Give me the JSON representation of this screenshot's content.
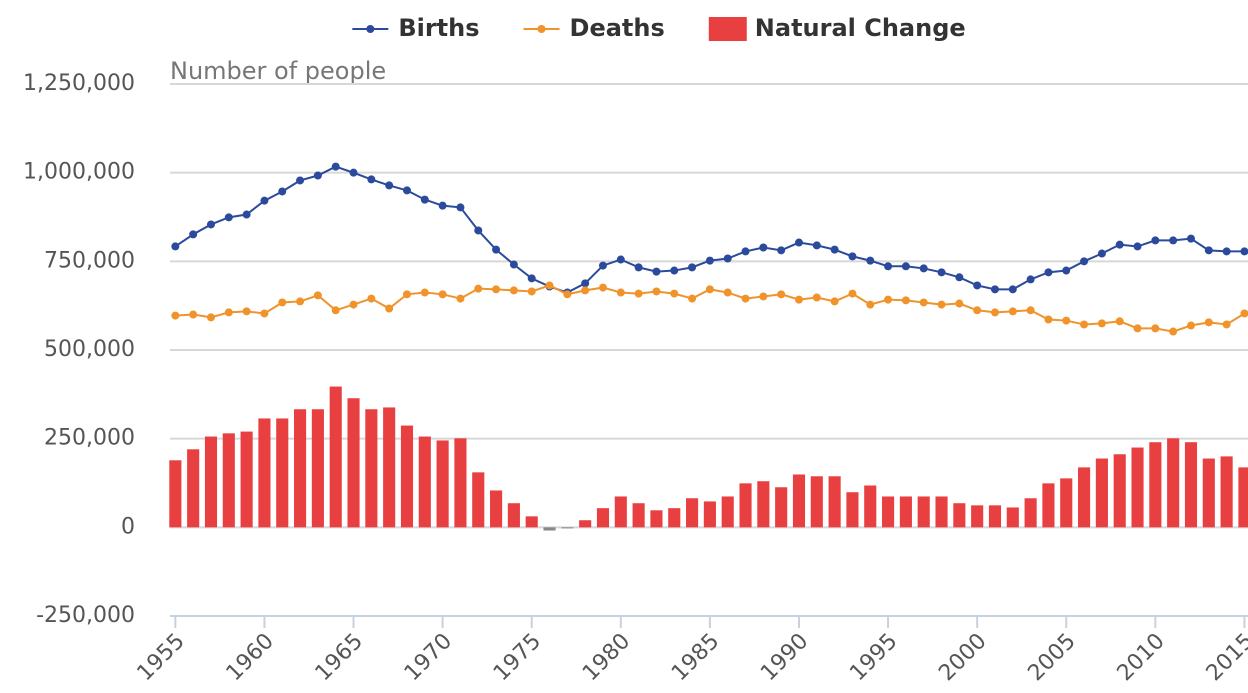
{
  "chart_data": {
    "type": "bar",
    "y_axis_title": "Number of people",
    "x": [
      1955,
      1956,
      1957,
      1958,
      1959,
      1960,
      1961,
      1962,
      1963,
      1964,
      1965,
      1966,
      1967,
      1968,
      1969,
      1970,
      1971,
      1972,
      1973,
      1974,
      1975,
      1976,
      1977,
      1978,
      1979,
      1980,
      1981,
      1982,
      1983,
      1984,
      1985,
      1986,
      1987,
      1988,
      1989,
      1990,
      1991,
      1992,
      1993,
      1994,
      1995,
      1996,
      1997,
      1998,
      1999,
      2000,
      2001,
      2002,
      2003,
      2004,
      2005,
      2006,
      2007,
      2008,
      2009,
      2010,
      2011,
      2012,
      2013,
      2014,
      2015
    ],
    "series": [
      {
        "name": "Births",
        "type": "line",
        "color": "#2b4a9c",
        "values": [
          792000,
          826000,
          854000,
          874000,
          882000,
          921000,
          947000,
          978000,
          992000,
          1017000,
          1000000,
          981000,
          964000,
          950000,
          924000,
          907000,
          902000,
          837000,
          783000,
          741000,
          702000,
          679000,
          662000,
          688000,
          738000,
          755000,
          733000,
          721000,
          724000,
          733000,
          752000,
          758000,
          778000,
          789000,
          781000,
          803000,
          795000,
          783000,
          764000,
          752000,
          736000,
          736000,
          730000,
          719000,
          705000,
          682000,
          671000,
          671000,
          699000,
          719000,
          724000,
          750000,
          772000,
          797000,
          792000,
          809000,
          809000,
          814000,
          781000,
          778000,
          778000
        ]
      },
      {
        "name": "Deaths",
        "type": "line",
        "color": "#f0932b",
        "values": [
          597000,
          600000,
          592000,
          606000,
          609000,
          603000,
          634000,
          637000,
          654000,
          612000,
          628000,
          645000,
          617000,
          657000,
          662000,
          657000,
          645000,
          673000,
          671000,
          668000,
          665000,
          682000,
          657000,
          668000,
          676000,
          662000,
          659000,
          665000,
          659000,
          645000,
          671000,
          662000,
          645000,
          651000,
          657000,
          642000,
          648000,
          637000,
          659000,
          628000,
          642000,
          640000,
          634000,
          628000,
          631000,
          612000,
          606000,
          609000,
          612000,
          586000,
          583000,
          572000,
          575000,
          581000,
          561000,
          561000,
          552000,
          569000,
          578000,
          572000,
          603000
        ]
      },
      {
        "name": "Natural Change",
        "type": "bar",
        "color": "#e84040",
        "negative_color": "#888888",
        "values": [
          189000,
          220000,
          256000,
          265000,
          270000,
          307000,
          307000,
          333000,
          333000,
          397000,
          364000,
          333000,
          338000,
          287000,
          256000,
          245000,
          251000,
          155000,
          104000,
          68000,
          31000,
          -9000,
          -3000,
          20000,
          54000,
          87000,
          68000,
          48000,
          54000,
          82000,
          73000,
          87000,
          124000,
          130000,
          113000,
          149000,
          144000,
          144000,
          99000,
          118000,
          87000,
          87000,
          87000,
          87000,
          68000,
          62000,
          62000,
          56000,
          82000,
          124000,
          138000,
          169000,
          194000,
          206000,
          225000,
          240000,
          251000,
          240000,
          194000,
          200000,
          169000
        ]
      }
    ],
    "xlim": [
      1954.7,
      2015.2
    ],
    "xticks": [
      1955,
      1960,
      1965,
      1970,
      1975,
      1980,
      1985,
      1990,
      1995,
      2000,
      2005,
      2010,
      2015
    ],
    "ylim": [
      -250000,
      1250000
    ],
    "yticks": [
      {
        "value": -250000,
        "label": "-250,000"
      },
      0,
      {
        "value": 250000,
        "label": "250,000"
      },
      {
        "value": 500000,
        "label": "500,000"
      },
      {
        "value": 750000,
        "label": "750,000"
      },
      {
        "value": 1000000,
        "label": "1,000,000"
      },
      {
        "value": 1250000,
        "label": "1,250,000"
      }
    ],
    "grid": true,
    "legend": "top"
  }
}
